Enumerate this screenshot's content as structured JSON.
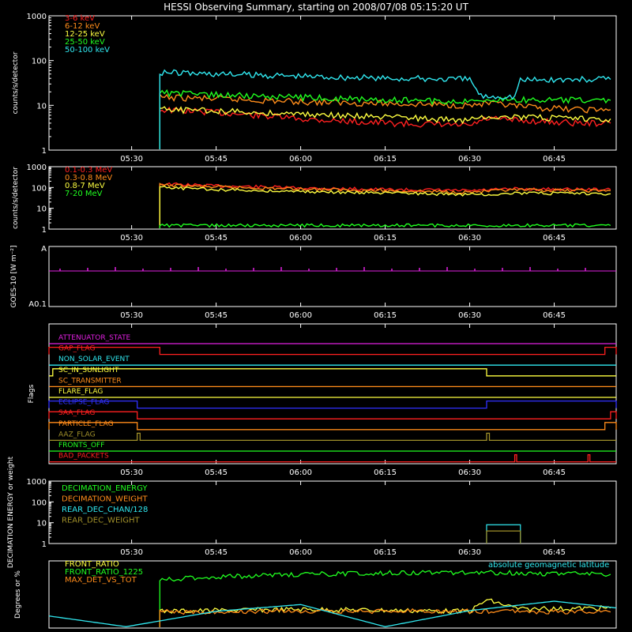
{
  "title": "HESSI Observing Summary, starting on 2008/07/08 05:15:20 UT",
  "colors": {
    "background": "#000000",
    "axes": "#ffffff",
    "red": "#ff2020",
    "orange": "#ff8c1a",
    "yellow": "#ffff40",
    "green": "#20ff20",
    "cyan": "#30e8f0",
    "magenta": "#e020e0",
    "blue": "#3030ff",
    "olive": "#a0902a"
  },
  "chart_data": [
    {
      "type": "line",
      "panel": "count-rates",
      "ylabel": "counts/s/detector",
      "yscale": "log",
      "ylim": [
        1,
        1000
      ],
      "yticks": [
        "1",
        "10",
        "100",
        "1000"
      ],
      "xlim": [
        "05:15:20",
        "06:56:00"
      ],
      "xticks": [
        "05:30",
        "05:45",
        "06:00",
        "06:15",
        "06:30",
        "06:45"
      ],
      "legend": [
        "3-6 keV",
        "6-12 keV",
        "12-25 keV",
        "25-50 keV",
        "50-100 keV"
      ],
      "series": [
        {
          "name": "3-6 keV",
          "color": "red",
          "x": [
            "05:35",
            "05:45",
            "06:00",
            "06:15",
            "06:30",
            "06:33",
            "06:40",
            "06:50",
            "06:55"
          ],
          "y": [
            8,
            7,
            5,
            4,
            3.5,
            5,
            4.5,
            4,
            4
          ]
        },
        {
          "name": "6-12 keV",
          "color": "orange",
          "x": [
            "05:35",
            "05:45",
            "06:00",
            "06:15",
            "06:30",
            "06:33",
            "06:40",
            "06:50",
            "06:55"
          ],
          "y": [
            15,
            14,
            12,
            11,
            10,
            11,
            9,
            8,
            8
          ]
        },
        {
          "name": "12-25 keV",
          "color": "yellow",
          "x": [
            "05:35",
            "05:45",
            "06:00",
            "06:15",
            "06:30",
            "06:33",
            "06:40",
            "06:50",
            "06:55"
          ],
          "y": [
            8,
            7.5,
            6.5,
            5.5,
            4.5,
            6,
            5.5,
            5,
            5
          ]
        },
        {
          "name": "25-50 keV",
          "color": "green",
          "x": [
            "05:35",
            "05:45",
            "06:00",
            "06:15",
            "06:30",
            "06:33",
            "06:40",
            "06:50",
            "06:55"
          ],
          "y": [
            19,
            17,
            15,
            13,
            12,
            14,
            13,
            13,
            13
          ]
        },
        {
          "name": "50-100 keV",
          "color": "cyan",
          "x": [
            "05:35",
            "05:45",
            "06:00",
            "06:15",
            "06:30",
            "06:32",
            "06:38",
            "06:39",
            "06:55"
          ],
          "y": [
            55,
            50,
            45,
            40,
            38,
            16,
            16,
            37,
            38
          ]
        }
      ]
    },
    {
      "type": "line",
      "panel": "high-energy",
      "ylabel": "counts/s/detector",
      "yscale": "log",
      "ylim": [
        1,
        1000
      ],
      "yticks": [
        "1",
        "10",
        "100",
        "1000"
      ],
      "xlim": [
        "05:15:20",
        "06:56:00"
      ],
      "xticks": [
        "05:30",
        "05:45",
        "06:00",
        "06:15",
        "06:30",
        "06:45"
      ],
      "legend": [
        "0.1-0.3 MeV",
        "0.3-0.8 MeV",
        "0.8-7 MeV",
        "7-20 MeV"
      ],
      "series": [
        {
          "name": "0.1-0.3 MeV",
          "color": "red",
          "x": [
            "05:35",
            "05:45",
            "06:00",
            "06:15",
            "06:30",
            "06:38",
            "06:55"
          ],
          "y": [
            150,
            120,
            95,
            80,
            70,
            85,
            80
          ]
        },
        {
          "name": "0.3-0.8 MeV",
          "color": "orange",
          "x": [
            "05:35",
            "05:45",
            "06:00",
            "06:15",
            "06:30",
            "06:38",
            "06:55"
          ],
          "y": [
            130,
            105,
            85,
            70,
            60,
            75,
            70
          ]
        },
        {
          "name": "0.8-7 MeV",
          "color": "yellow",
          "x": [
            "05:35",
            "05:45",
            "06:00",
            "06:15",
            "06:30",
            "06:38",
            "06:55"
          ],
          "y": [
            100,
            80,
            65,
            55,
            45,
            55,
            50
          ]
        },
        {
          "name": "7-20 MeV",
          "color": "green",
          "x": [
            "05:35",
            "06:55"
          ],
          "y": [
            1.5,
            1.5
          ]
        }
      ]
    },
    {
      "type": "line",
      "panel": "goes",
      "ylabel": "GOES-10 [W m⁻²]",
      "ylim": [
        "A0.1",
        "A"
      ],
      "yticks": [
        "A0.1",
        "A"
      ],
      "xlim": [
        "05:15:20",
        "06:56:00"
      ],
      "xticks": [
        "05:30",
        "05:45",
        "06:00",
        "06:15",
        "06:30",
        "06:45"
      ],
      "series": [
        {
          "name": "GOES",
          "color": "magenta",
          "x": [
            "05:15:20",
            "06:56:00"
          ],
          "y": [
            "flat",
            "flat"
          ]
        }
      ]
    },
    {
      "type": "line",
      "panel": "flags",
      "ylabel": "Flags",
      "xlim": [
        "05:15:20",
        "06:56:00"
      ],
      "xticks": [
        "05:30",
        "05:45",
        "06:00",
        "06:15",
        "06:30",
        "06:45"
      ],
      "flags": [
        {
          "name": "ATTENUATOR_STATE",
          "color": "magenta",
          "intervals": []
        },
        {
          "name": "GAP_FLAG",
          "color": "red",
          "intervals": [
            [
              "05:15:20",
              "05:35"
            ],
            [
              "06:54",
              "06:56"
            ]
          ]
        },
        {
          "name": "NON_SOLAR_EVENT",
          "color": "cyan",
          "intervals": []
        },
        {
          "name": "SC_IN_SUNLIGHT",
          "color": "yellow",
          "intervals": [
            [
              "05:16",
              "06:33"
            ]
          ]
        },
        {
          "name": "SC_TRANSMITTER",
          "color": "orange",
          "intervals": []
        },
        {
          "name": "FLARE_FLAG",
          "color": "yellow",
          "intervals": []
        },
        {
          "name": "ECLIPSE_FLAG",
          "color": "blue",
          "intervals": [
            [
              "05:15:20",
              "05:31"
            ],
            [
              "06:33",
              "06:56"
            ]
          ]
        },
        {
          "name": "SAA_FLAG",
          "color": "red",
          "intervals": [
            [
              "05:15:20",
              "05:31"
            ],
            [
              "06:55",
              "06:56"
            ]
          ]
        },
        {
          "name": "PARTICLE_FLAG",
          "color": "orange",
          "intervals": [
            [
              "05:15:20",
              "05:31"
            ],
            [
              "06:54",
              "06:56"
            ]
          ]
        },
        {
          "name": "AAZ_FLAG",
          "color": "olive",
          "intervals": [
            [
              "05:31",
              "05:31:30"
            ],
            [
              "06:33",
              "06:33:30"
            ]
          ]
        },
        {
          "name": "FRONTS_OFF",
          "color": "green",
          "intervals": []
        },
        {
          "name": "BAD_PACKETS",
          "color": "red",
          "intervals": [
            [
              "06:38",
              "06:38:20"
            ],
            [
              "06:51",
              "06:51:20"
            ]
          ]
        }
      ]
    },
    {
      "type": "line",
      "panel": "decimation",
      "ylabel": "DECIMATION ENERGY or weight",
      "yscale": "log",
      "ylim": [
        1,
        1000
      ],
      "yticks": [
        "1",
        "10",
        "100",
        "1000"
      ],
      "xlim": [
        "05:15:20",
        "06:56:00"
      ],
      "xticks": [
        "05:30",
        "05:45",
        "06:00",
        "06:15",
        "06:30",
        "06:45"
      ],
      "legend": [
        "DECIMATION_ENERGY",
        "DECIMATION_WEIGHT",
        "REAR_DEC_CHAN/128",
        "REAR_DEC_WEIGHT"
      ],
      "series": [
        {
          "name": "DECIMATION_ENERGY",
          "color": "green",
          "x": [
            "05:15:20",
            "06:56:00"
          ],
          "y": [
            0,
            0
          ]
        },
        {
          "name": "DECIMATION_WEIGHT",
          "color": "orange",
          "x": [
            "05:15:20",
            "06:56:00"
          ],
          "y": [
            0,
            0
          ]
        },
        {
          "name": "REAR_DEC_CHAN/128",
          "color": "cyan",
          "x": [
            "06:33",
            "06:39"
          ],
          "y": [
            8,
            8
          ]
        },
        {
          "name": "REAR_DEC_WEIGHT",
          "color": "olive",
          "x": [
            "06:33",
            "06:39"
          ],
          "y": [
            4,
            4
          ]
        }
      ]
    },
    {
      "type": "line",
      "panel": "ratios",
      "ylabel": "Degrees or %",
      "xlim": [
        "05:15:20",
        "06:56:00"
      ],
      "legend": [
        "FRONT_RATIO",
        "FRONT_RATIO_1225",
        "MAX_DET_VS_TOT"
      ],
      "annotation": "absolute geomagnetic latitude",
      "series": [
        {
          "name": "FRONT_RATIO",
          "color": "yellow",
          "x": [
            "05:35",
            "06:00",
            "06:30",
            "06:33",
            "06:39",
            "06:55"
          ],
          "y": [
            25,
            28,
            25,
            42,
            28,
            30
          ]
        },
        {
          "name": "FRONT_RATIO_1225",
          "color": "green",
          "x": [
            "05:35",
            "05:45",
            "06:00",
            "06:15",
            "06:30",
            "06:45",
            "06:55"
          ],
          "y": [
            72,
            76,
            80,
            82,
            83,
            81,
            80
          ]
        },
        {
          "name": "MAX_DET_VS_TOT",
          "color": "orange",
          "x": [
            "05:35",
            "06:00",
            "06:30",
            "06:55"
          ],
          "y": [
            24,
            25,
            25,
            24
          ]
        },
        {
          "name": "absolute geomagnetic latitude",
          "color": "cyan",
          "x": [
            "05:15:20",
            "05:29",
            "05:45",
            "06:00",
            "06:15",
            "06:30",
            "06:45",
            "06:56"
          ],
          "y": [
            18,
            2,
            25,
            35,
            2,
            26,
            40,
            30
          ]
        }
      ]
    }
  ]
}
